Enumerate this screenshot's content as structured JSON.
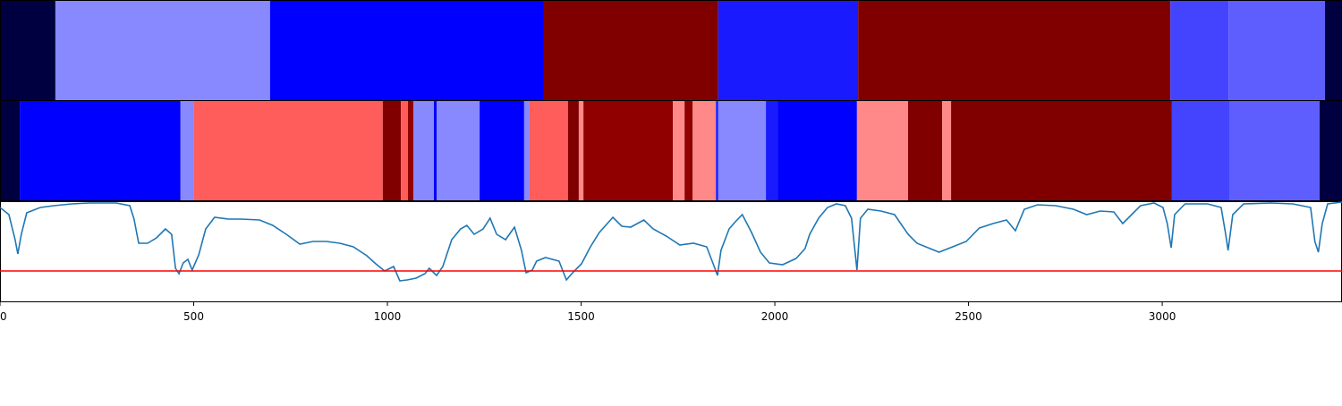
{
  "chart_data": {
    "type": "line",
    "xlim": [
      0,
      3464
    ],
    "xticks": [
      0,
      500,
      1000,
      1500,
      2000,
      2500,
      3000
    ],
    "ylim": [
      0,
      111
    ],
    "segment_tracks": [
      {
        "breaks": [
          0,
          143,
          697,
          1404,
          1854,
          2215,
          3021,
          3171,
          3420,
          3464
        ],
        "colors": [
          "#000040",
          "#8888ff",
          "#0000ff",
          "#800000",
          "#1a1aff",
          "#800000",
          "#4444ff",
          "#5e5eff",
          "#000040"
        ]
      },
      {
        "breaks": [
          0,
          51,
          466,
          501,
          988,
          1035,
          1053,
          1067,
          1120,
          1127,
          1238,
          1353,
          1367,
          1466,
          1494,
          1506,
          1737,
          1767,
          1788,
          1848,
          1854,
          1977,
          2007,
          2212,
          2344,
          2432,
          2455,
          3025,
          3173,
          3406,
          3464
        ],
        "colors": [
          "#000040",
          "#0000ff",
          "#8888ff",
          "#ff5c5c",
          "#800000",
          "#ff5c5c",
          "#900000",
          "#8888ff",
          "#0000ff",
          "#8888ff",
          "#0000ff",
          "#8888ff",
          "#ff5c5c",
          "#800000",
          "#ff8888",
          "#900000",
          "#ff8888",
          "#900000",
          "#ff8888",
          "#1a1aff",
          "#8888ff",
          "#1a1aff",
          "#0000ff",
          "#ff8888",
          "#800000",
          "#ff8888",
          "#800000",
          "#4444ff",
          "#5e5eff",
          "#000040"
        ]
      }
    ],
    "color": "#1f77b4",
    "threshold": {
      "value": 34,
      "color": "#ff0000"
    },
    "x": [
      0,
      23,
      39,
      46,
      55,
      69,
      104,
      139,
      185,
      231,
      300,
      335,
      346,
      358,
      381,
      404,
      427,
      443,
      453,
      462,
      473,
      485,
      496,
      513,
      531,
      554,
      589,
      623,
      670,
      704,
      739,
      774,
      808,
      843,
      877,
      912,
      947,
      970,
      993,
      1016,
      1032,
      1051,
      1074,
      1097,
      1108,
      1127,
      1143,
      1166,
      1189,
      1205,
      1224,
      1247,
      1265,
      1282,
      1305,
      1328,
      1346,
      1358,
      1374,
      1385,
      1408,
      1443,
      1462,
      1478,
      1501,
      1524,
      1547,
      1582,
      1605,
      1628,
      1662,
      1686,
      1720,
      1755,
      1790,
      1824,
      1840,
      1852,
      1861,
      1882,
      1898,
      1916,
      1940,
      1963,
      1986,
      2020,
      2055,
      2078,
      2090,
      2113,
      2136,
      2159,
      2182,
      2198,
      2212,
      2221,
      2240,
      2274,
      2309,
      2344,
      2367,
      2401,
      2424,
      2459,
      2494,
      2528,
      2563,
      2598,
      2621,
      2644,
      2678,
      2725,
      2771,
      2805,
      2840,
      2875,
      2898,
      2921,
      2944,
      2979,
      3002,
      3013,
      3023,
      3032,
      3059,
      3117,
      3152,
      3163,
      3170,
      3182,
      3210,
      3279,
      3337,
      3383,
      3394,
      3403,
      3413,
      3427,
      3464
    ],
    "values": [
      105,
      97,
      69,
      53,
      75,
      99,
      105,
      107,
      109,
      110,
      110,
      107,
      92,
      65,
      65,
      71,
      81,
      75,
      37,
      31,
      43,
      47,
      35,
      52,
      81,
      94,
      92,
      92,
      91,
      85,
      75,
      64,
      67,
      67,
      65,
      61,
      51,
      42,
      34,
      39,
      23,
      24,
      26,
      31,
      37,
      29,
      39,
      69,
      81,
      85,
      75,
      81,
      93,
      75,
      69,
      83,
      57,
      32,
      35,
      45,
      49,
      45,
      24,
      32,
      42,
      61,
      77,
      94,
      84,
      83,
      91,
      81,
      73,
      63,
      65,
      61,
      43,
      29,
      57,
      81,
      89,
      97,
      77,
      55,
      43,
      41,
      48,
      59,
      75,
      93,
      105,
      109,
      107,
      93,
      35,
      93,
      103,
      101,
      97,
      75,
      65,
      59,
      55,
      61,
      67,
      82,
      87,
      91,
      79,
      103,
      108,
      107,
      103,
      97,
      101,
      100,
      87,
      97,
      107,
      110,
      105,
      87,
      60,
      97,
      109,
      109,
      105,
      77,
      57,
      97,
      109,
      110,
      109,
      105,
      67,
      55,
      87,
      109,
      111
    ]
  }
}
